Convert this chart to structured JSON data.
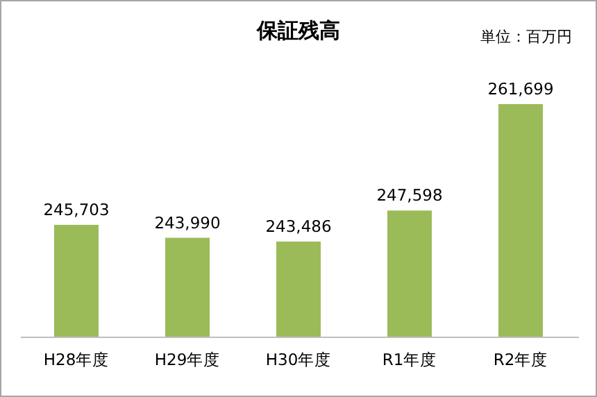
{
  "chart_data": {
    "type": "bar",
    "title": "保証残高",
    "annotations": [
      "単位：百万円"
    ],
    "categories": [
      "H28年度",
      "H29年度",
      "H30年度",
      "R1年度",
      "R2年度"
    ],
    "values": [
      245703,
      243990,
      243486,
      247598,
      261699
    ],
    "value_labels": [
      "245,703",
      "243,990",
      "243,486",
      "247,598",
      "261,699"
    ],
    "color": "#9bbb59",
    "ylim": [
      230800,
      261699
    ],
    "tick_labels": "x"
  }
}
